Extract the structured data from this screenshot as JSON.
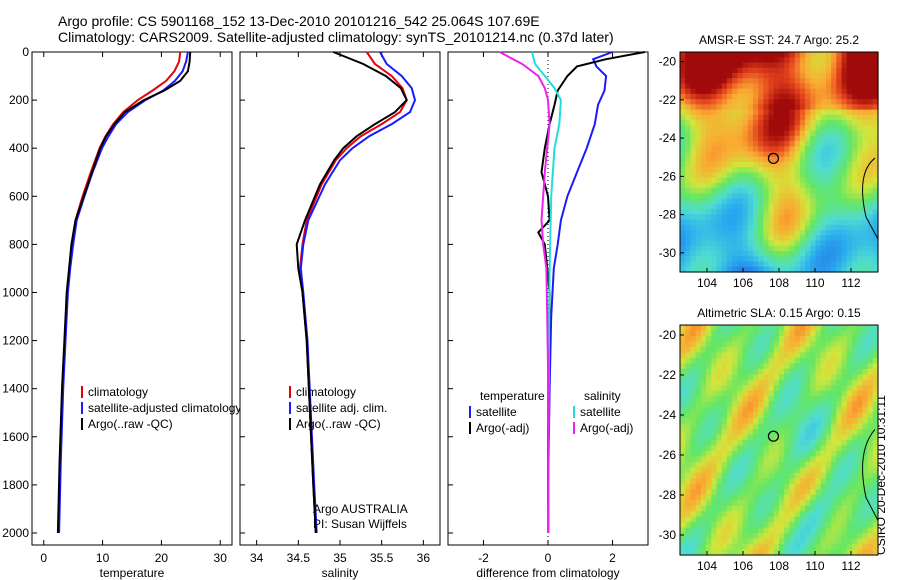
{
  "title_line1": "Argo profile: CS 5901168_152 13-Dec-2010 20101216_542 25.064S 107.69E",
  "title_line2": "Climatology: CARS2009. Satellite-adjusted climatology: synTS_20101214.nc (0.37d later)",
  "side_caption": "CSIRO 20-Dec-2010 10:31:11",
  "colors": {
    "climatology": "#e8000b",
    "satellite": "#1a1aff",
    "argo": "#000000",
    "sat_sal": "#22dddd",
    "argo_sal": "#ee22ee"
  },
  "chart_data": [
    {
      "type": "line",
      "id": "temperature",
      "xlabel": "temperature",
      "ylabel": "",
      "xlim": [
        -2,
        32
      ],
      "ylim": [
        2050,
        0
      ],
      "xticks": [
        0,
        10,
        20,
        30
      ],
      "yticks": [
        0,
        200,
        400,
        600,
        800,
        1000,
        1200,
        1400,
        1600,
        1800,
        2000
      ],
      "legend": [
        "climatology",
        "satellite-adjusted climatology",
        "Argo(..raw -QC)"
      ],
      "legend_position": "lower-right",
      "annotation": [
        "",
        ""
      ],
      "series": [
        {
          "name": "climatology",
          "color": "#e8000b",
          "x": [
            23.2,
            23,
            22.2,
            20.8,
            18.5,
            16,
            13.5,
            11.8,
            10.5,
            9.5,
            8,
            6.6,
            5.4,
            4.8,
            4.4,
            4,
            3.6,
            3.2,
            2.8,
            2.5
          ],
          "y": [
            0,
            40,
            80,
            120,
            160,
            200,
            250,
            300,
            350,
            400,
            500,
            600,
            700,
            800,
            900,
            1000,
            1200,
            1400,
            1700,
            2000
          ]
        },
        {
          "name": "satellite-adjusted climatology",
          "color": "#1a1aff",
          "x": [
            24.5,
            24.2,
            23.6,
            22.3,
            20.3,
            17.3,
            14.3,
            12.3,
            11,
            9.9,
            8.3,
            6.9,
            5.6,
            5,
            4.5,
            4.1,
            3.7,
            3.3,
            2.9,
            2.6
          ],
          "y": [
            0,
            40,
            80,
            120,
            160,
            200,
            250,
            300,
            350,
            400,
            500,
            600,
            700,
            800,
            900,
            1000,
            1200,
            1400,
            1700,
            2000
          ]
        },
        {
          "name": "Argo(..raw -QC)",
          "color": "#000000",
          "x": [
            24.9,
            24.8,
            24.5,
            23.2,
            20.5,
            17,
            13.8,
            12,
            10.6,
            9.6,
            8.2,
            6.8,
            5.4,
            4.7,
            4.3,
            3.9,
            3.5,
            3.1,
            2.7,
            2.4
          ],
          "y": [
            0,
            40,
            80,
            120,
            160,
            200,
            250,
            300,
            350,
            400,
            500,
            600,
            700,
            800,
            900,
            1000,
            1200,
            1400,
            1700,
            2000
          ]
        }
      ]
    },
    {
      "type": "line",
      "id": "salinity",
      "xlabel": "salinity",
      "ylabel": "",
      "xlim": [
        33.8,
        36.2
      ],
      "ylim": [
        2050,
        0
      ],
      "xticks": [
        34,
        34.5,
        35,
        35.5,
        36
      ],
      "yticks": [],
      "legend": [
        "climatology",
        "satellite adj. clim.",
        "Argo(..raw -QC)"
      ],
      "legend_position": "lower-right",
      "annotation": [
        "Argo AUSTRALIA",
        "PI: Susan Wijffels"
      ],
      "series": [
        {
          "name": "climatology",
          "color": "#e8000b",
          "x": [
            35.32,
            35.42,
            35.62,
            35.75,
            35.8,
            35.72,
            35.5,
            35.25,
            35.08,
            34.95,
            34.78,
            34.6,
            34.55,
            34.52,
            34.55,
            34.6,
            34.64,
            34.68,
            34.71
          ],
          "y": [
            0,
            50,
            100,
            150,
            200,
            250,
            300,
            350,
            400,
            450,
            550,
            700,
            800,
            900,
            1000,
            1200,
            1500,
            1800,
            2000
          ]
        },
        {
          "name": "satellite adj. clim.",
          "color": "#1a1aff",
          "x": [
            35.48,
            35.56,
            35.74,
            35.86,
            35.9,
            35.84,
            35.62,
            35.35,
            35.15,
            35,
            34.82,
            34.62,
            34.56,
            34.53,
            34.56,
            34.61,
            34.65,
            34.69,
            34.72
          ],
          "y": [
            0,
            50,
            100,
            150,
            200,
            250,
            300,
            350,
            400,
            450,
            550,
            700,
            800,
            900,
            1000,
            1200,
            1500,
            1800,
            2000
          ]
        },
        {
          "name": "Argo(..raw -QC)",
          "color": "#000000",
          "x": [
            34.92,
            35.28,
            35.55,
            35.73,
            35.8,
            35.66,
            35.42,
            35.2,
            35.04,
            34.93,
            34.76,
            34.58,
            34.48,
            34.5,
            34.55,
            34.6,
            34.64,
            34.68,
            34.71
          ],
          "y": [
            0,
            50,
            100,
            150,
            200,
            250,
            300,
            350,
            400,
            450,
            550,
            700,
            800,
            900,
            1000,
            1200,
            1500,
            1800,
            2000
          ]
        }
      ]
    },
    {
      "type": "line",
      "id": "difference",
      "xlabel": "difference from climatology",
      "ylabel": "",
      "xlim": [
        -3.1,
        3.1
      ],
      "ylim": [
        2050,
        0
      ],
      "xticks": [
        -2,
        0,
        2
      ],
      "yticks": [],
      "legend_left": [
        "temperature",
        "satellite",
        "Argo(-adj)"
      ],
      "legend_right": [
        "salinity",
        "satellite",
        "Argo(-adj)"
      ],
      "legend_position": "lower-center",
      "series": [
        {
          "name": "temperature satellite",
          "color": "#1a1aff",
          "x": [
            2,
            1.4,
            1.5,
            1.8,
            1.75,
            1.55,
            1.45,
            1.2,
            0.9,
            0.6,
            0.4,
            0.3,
            0.18,
            0.1,
            0.05,
            0.02,
            0.01
          ],
          "y": [
            0,
            30,
            60,
            100,
            160,
            220,
            300,
            400,
            500,
            600,
            700,
            800,
            900,
            1100,
            1400,
            1700,
            2000
          ]
        },
        {
          "name": "temperature Argo(-adj)",
          "color": "#000000",
          "x": [
            3.0,
            1.8,
            0.9,
            0.6,
            0.3,
            0.2,
            0.05,
            -0.1,
            -0.2,
            0,
            0.05,
            -0.3,
            -0.1,
            0.05,
            0.02,
            0,
            0.01
          ],
          "y": [
            0,
            30,
            60,
            100,
            160,
            220,
            300,
            400,
            500,
            600,
            700,
            750,
            800,
            1000,
            1300,
            1600,
            2000
          ]
        },
        {
          "name": "salinity satellite",
          "color": "#22dddd",
          "x": [
            -0.5,
            -0.4,
            -0.1,
            0.2,
            0.4,
            0.35,
            0.2,
            0.1,
            0.05,
            0.02,
            0.01
          ],
          "y": [
            0,
            50,
            100,
            150,
            200,
            300,
            400,
            600,
            900,
            1400,
            2000
          ]
        },
        {
          "name": "salinity Argo(-adj)",
          "color": "#ee22ee",
          "x": [
            -1.5,
            -0.8,
            -0.3,
            -0.1,
            0.0,
            0.05,
            -0.1,
            -0.2,
            -0.15,
            -0.05,
            0.0,
            0.01
          ],
          "y": [
            0,
            50,
            100,
            150,
            200,
            300,
            500,
            700,
            800,
            900,
            1300,
            2000
          ]
        }
      ]
    },
    {
      "type": "heatmap",
      "id": "sst",
      "title": "AMSR-E SST: 24.7 Argo: 25.2",
      "xlim": [
        102.5,
        113.5
      ],
      "ylim": [
        -31,
        -19.5
      ],
      "xticks": [
        104,
        106,
        108,
        110,
        112
      ],
      "yticks": [
        -20,
        -22,
        -24,
        -26,
        -28,
        -30
      ],
      "marker": {
        "lon": 107.69,
        "lat": -25.06
      }
    },
    {
      "type": "heatmap",
      "id": "sla",
      "title": "Altimetric SLA: 0.15 Argo: 0.15",
      "xlim": [
        102.5,
        113.5
      ],
      "ylim": [
        -31,
        -19.5
      ],
      "xticks": [
        104,
        106,
        108,
        110,
        112
      ],
      "yticks": [
        -20,
        -22,
        -24,
        -26,
        -28,
        -30
      ],
      "marker": {
        "lon": 107.69,
        "lat": -25.06
      }
    }
  ]
}
